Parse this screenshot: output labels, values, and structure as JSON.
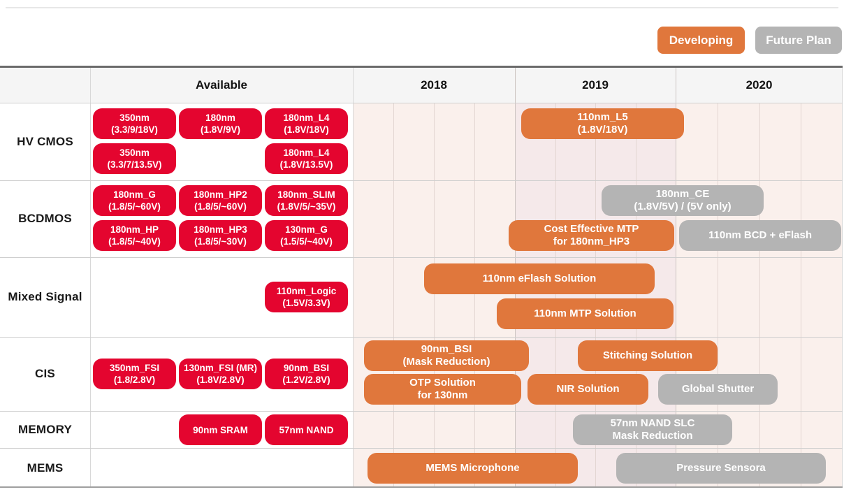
{
  "legend": {
    "developing_label": "Developing",
    "future_label": "Future Plan"
  },
  "header": {
    "available_label": "Available",
    "years": [
      "2018",
      "2019",
      "2020"
    ]
  },
  "colors": {
    "available": "#E4052F",
    "developing": "#E0773C",
    "future": "#B4B4B4",
    "timeline_bg": "#FAF0EC",
    "timeline_band_2019": "#F5E9EA"
  },
  "chart_data": {
    "type": "table",
    "subtype": "roadmap-gantt",
    "columns": [
      "Available",
      "2018",
      "2019",
      "2020"
    ],
    "x_range": [
      2018,
      2021
    ],
    "statuses": [
      "available",
      "developing",
      "future"
    ],
    "rows": [
      {
        "label": "HV CMOS",
        "items": [
          {
            "lines": [
              "350nm",
              "(3.3/9/18V)"
            ],
            "status": "available",
            "slot": 0,
            "lane": "top"
          },
          {
            "lines": [
              "180nm",
              "(1.8V/9V)"
            ],
            "status": "available",
            "slot": 1,
            "lane": "top"
          },
          {
            "lines": [
              "180nm_L4",
              "(1.8V/18V)"
            ],
            "status": "available",
            "slot": 2,
            "lane": "top"
          },
          {
            "lines": [
              "350nm",
              "(3.3/7/13.5V)"
            ],
            "status": "available",
            "slot": 0,
            "lane": "bottom"
          },
          {
            "lines": [
              "180nm_L4",
              "(1.8V/13.5V)"
            ],
            "status": "available",
            "slot": 2,
            "lane": "bottom"
          },
          {
            "lines": [
              "110nm_L5",
              "(1.8V/18V)"
            ],
            "status": "developing",
            "start": 2019.04,
            "end": 2020.05,
            "lane": "top"
          }
        ]
      },
      {
        "label": "BCDMOS",
        "items": [
          {
            "lines": [
              "180nm_G",
              "(1.8/5/~60V)"
            ],
            "status": "available",
            "slot": 0,
            "lane": "top"
          },
          {
            "lines": [
              "180nm_HP2",
              "(1.8/5/~60V)"
            ],
            "status": "available",
            "slot": 1,
            "lane": "top"
          },
          {
            "lines": [
              "180nm_SLIM",
              "(1.8V/5/~35V)"
            ],
            "status": "available",
            "slot": 2,
            "lane": "top"
          },
          {
            "lines": [
              "180nm_HP",
              "(1.8/5/~40V)"
            ],
            "status": "available",
            "slot": 0,
            "lane": "bottom"
          },
          {
            "lines": [
              "180nm_HP3",
              "(1.8/5/~30V)"
            ],
            "status": "available",
            "slot": 1,
            "lane": "bottom"
          },
          {
            "lines": [
              "130nm_G",
              "(1.5/5/~40V)"
            ],
            "status": "available",
            "slot": 2,
            "lane": "bottom"
          },
          {
            "lines": [
              "180nm_CE",
              "(1.8V/5V) / (5V only)"
            ],
            "status": "future",
            "start": 2019.54,
            "end": 2020.53,
            "lane": "top"
          },
          {
            "lines": [
              "Cost Effective MTP",
              "for 180nm_HP3"
            ],
            "status": "developing",
            "start": 2018.96,
            "end": 2019.99,
            "lane": "bottom"
          },
          {
            "lines": [
              "110nm BCD + eFlash"
            ],
            "status": "future",
            "start": 2020.02,
            "end": 2020.99,
            "lane": "bottom"
          }
        ]
      },
      {
        "label": "Mixed Signal",
        "items": [
          {
            "lines": [
              "110nm_Logic",
              "(1.5V/3.3V)"
            ],
            "status": "available",
            "slot": 2,
            "lane": "center"
          },
          {
            "lines": [
              "110nm eFlash Solution"
            ],
            "status": "developing",
            "start": 2018.44,
            "end": 2019.87,
            "lane": "top"
          },
          {
            "lines": [
              "110nm MTP Solution"
            ],
            "status": "developing",
            "start": 2018.89,
            "end": 2019.99,
            "lane": "bottom"
          }
        ]
      },
      {
        "label": "CIS",
        "items": [
          {
            "lines": [
              "350nm_FSI",
              "(1.8/2.8V)"
            ],
            "status": "available",
            "slot": 0,
            "lane": "center"
          },
          {
            "lines": [
              "130nm_FSI (MR)",
              "(1.8V/2.8V)"
            ],
            "status": "available",
            "slot": 1,
            "lane": "center"
          },
          {
            "lines": [
              "90nm_BSI",
              "(1.2V/2.8V)"
            ],
            "status": "available",
            "slot": 2,
            "lane": "center"
          },
          {
            "lines": [
              "90nm_BSI",
              "(Mask Reduction)"
            ],
            "status": "developing",
            "start": 2018.07,
            "end": 2019.09,
            "lane": "top"
          },
          {
            "lines": [
              "Stitching Solution"
            ],
            "status": "developing",
            "start": 2019.39,
            "end": 2020.25,
            "lane": "top"
          },
          {
            "lines": [
              "OTP Solution",
              "for 130nm"
            ],
            "status": "developing",
            "start": 2018.07,
            "end": 2019.04,
            "lane": "bottom"
          },
          {
            "lines": [
              "NIR Solution"
            ],
            "status": "developing",
            "start": 2019.08,
            "end": 2019.83,
            "lane": "bottom"
          },
          {
            "lines": [
              "Global Shutter"
            ],
            "status": "future",
            "start": 2019.89,
            "end": 2020.61,
            "lane": "bottom"
          }
        ]
      },
      {
        "label": "MEMORY",
        "items": [
          {
            "lines": [
              "90nm SRAM"
            ],
            "status": "available",
            "slot": 1,
            "lane": "center"
          },
          {
            "lines": [
              "57nm NAND"
            ],
            "status": "available",
            "slot": 2,
            "lane": "center"
          },
          {
            "lines": [
              "57nm NAND SLC",
              "Mask Reduction"
            ],
            "status": "future",
            "start": 2019.36,
            "end": 2020.34,
            "lane": "center"
          }
        ]
      },
      {
        "label": "MEMS",
        "items": [
          {
            "lines": [
              "MEMS Microphone"
            ],
            "status": "developing",
            "start": 2018.09,
            "end": 2019.39,
            "lane": "center"
          },
          {
            "lines": [
              "Pressure Sensora"
            ],
            "status": "future",
            "start": 2019.63,
            "end": 2020.9,
            "lane": "center"
          }
        ]
      }
    ]
  }
}
